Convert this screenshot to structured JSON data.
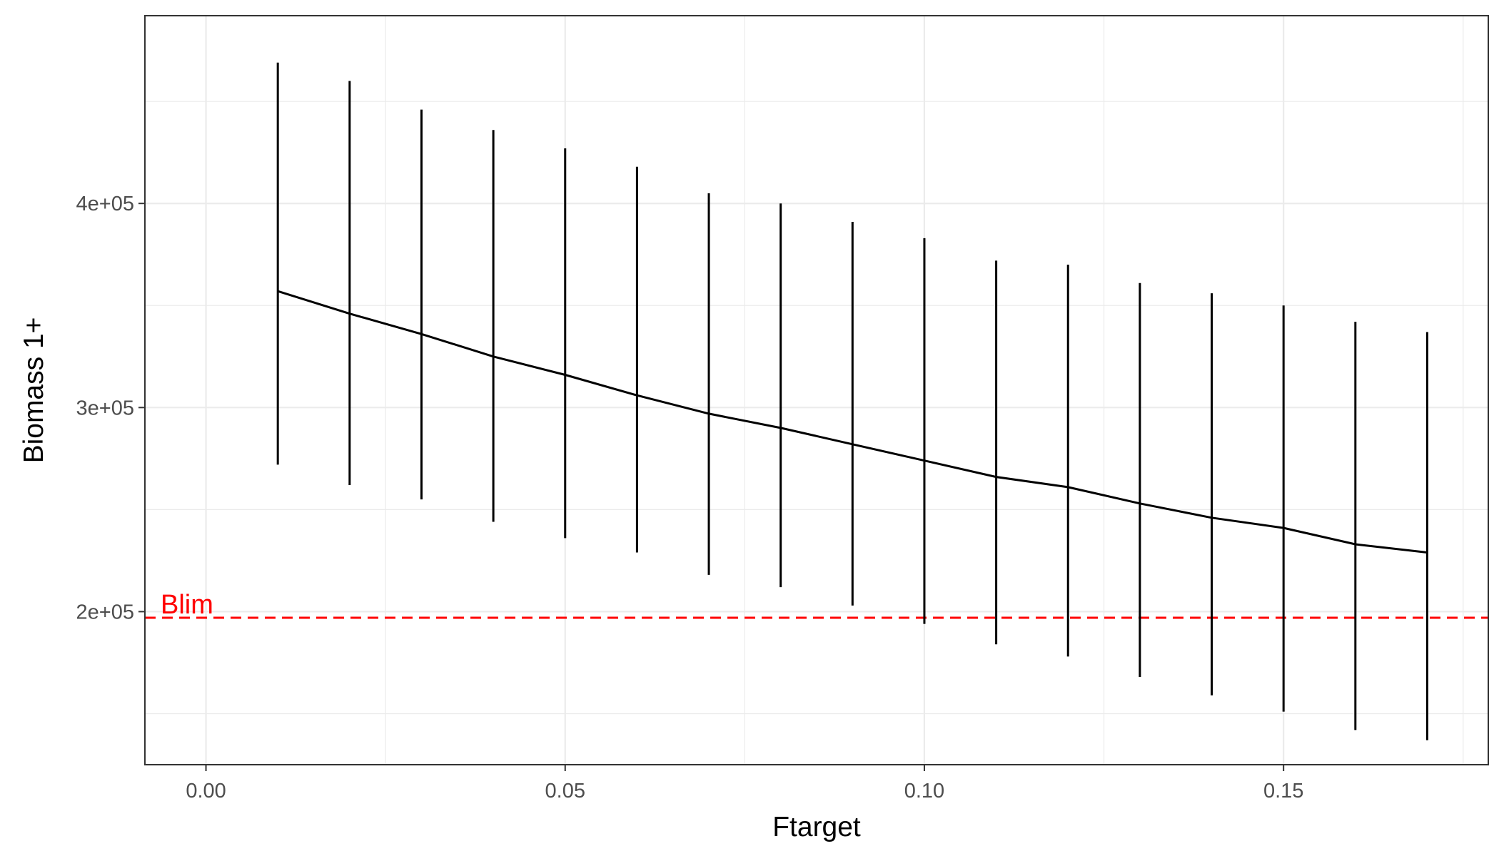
{
  "chart_data": {
    "type": "line",
    "title": "",
    "xlabel": "Ftarget",
    "ylabel": "Biomass 1+",
    "xlim": [
      -0.0085,
      0.1785
    ],
    "ylim": [
      125000,
      492000
    ],
    "x_ticks": [
      {
        "value": 0.0,
        "label": "0.00"
      },
      {
        "value": 0.05,
        "label": "0.05"
      },
      {
        "value": 0.1,
        "label": "0.10"
      },
      {
        "value": 0.15,
        "label": "0.15"
      }
    ],
    "y_ticks": [
      {
        "value": 200000,
        "label": "2e+05"
      },
      {
        "value": 300000,
        "label": "3e+05"
      },
      {
        "value": 400000,
        "label": "4e+05"
      }
    ],
    "grid": true,
    "legend": "none",
    "series": [
      {
        "x": [
          0.01,
          0.02,
          0.03,
          0.04,
          0.05,
          0.06,
          0.07,
          0.08,
          0.09,
          0.1,
          0.11,
          0.12,
          0.13,
          0.14,
          0.15,
          0.16,
          0.17
        ],
        "values": [
          357000,
          346000,
          336000,
          325000,
          316000,
          306000,
          297000,
          290000,
          282000,
          274000,
          266000,
          261000,
          253000,
          246000,
          241000,
          233000,
          229000
        ],
        "lower": [
          272000,
          262000,
          255000,
          244000,
          236000,
          229000,
          218000,
          212000,
          203000,
          194000,
          184000,
          178000,
          168000,
          159000,
          151000,
          142000,
          137000
        ],
        "upper": [
          469000,
          460000,
          446000,
          436000,
          427000,
          418000,
          405000,
          400000,
          391000,
          383000,
          372000,
          370000,
          361000,
          356000,
          350000,
          342000,
          337000
        ],
        "color": "#000000"
      }
    ],
    "reference_lines": [
      {
        "name": "Blim",
        "value": 197000,
        "color": "#ff0000",
        "style": "dashed"
      }
    ]
  }
}
